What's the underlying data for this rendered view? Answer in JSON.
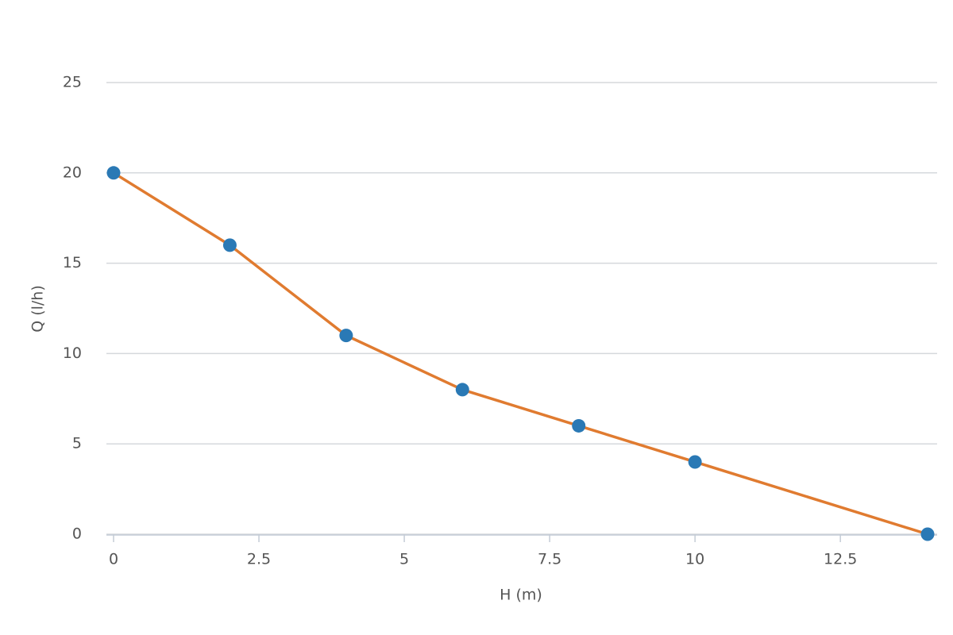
{
  "chart_data": {
    "type": "line",
    "x_label": "H (m)",
    "y_label": "Q (l/h)",
    "x": [
      0,
      2,
      4,
      6,
      8,
      10,
      14
    ],
    "series": [
      {
        "color": "#e07b30",
        "marker_color": "#2a79b5",
        "values": [
          20,
          16,
          11,
          8,
          6,
          4,
          0
        ]
      }
    ],
    "xlim": [
      0,
      14
    ],
    "xticks": [
      0,
      2.5,
      5,
      7.5,
      10,
      12.5
    ],
    "ylim": [
      0,
      25
    ],
    "yticks": [
      0,
      5,
      10,
      15,
      20,
      25
    ],
    "grid": true
  }
}
